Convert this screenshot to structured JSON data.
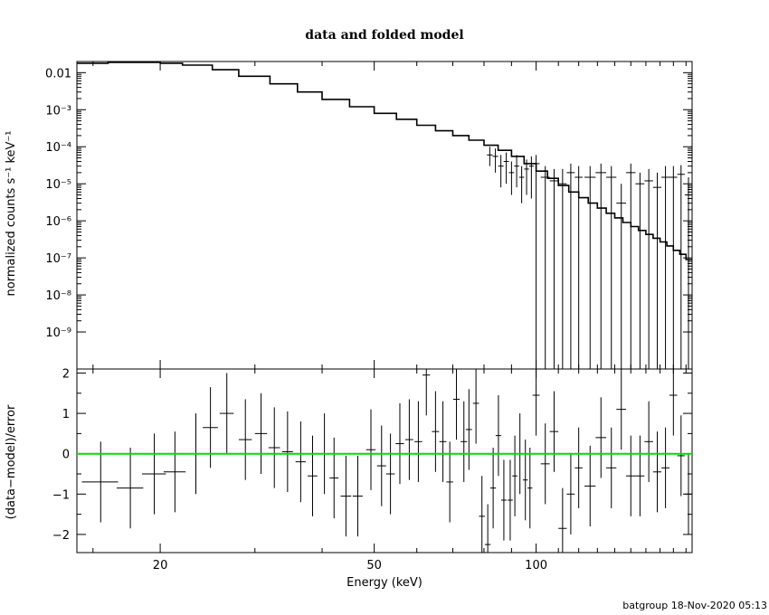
{
  "chart_data": [
    {
      "type": "scatter",
      "panel": "upper",
      "title": "data and folded model",
      "ylabel": "normalized counts s⁻¹ keV⁻¹",
      "yscale": "log",
      "xscale": "log",
      "xlim": [
        14,
        195
      ],
      "ylim": [
        1e-10,
        0.02
      ],
      "y_tick_labels": [
        "0.01",
        "10⁻³",
        "10⁻⁴",
        "10⁻⁵",
        "10⁻⁶",
        "10⁻⁷",
        "10⁻⁸",
        "10⁻⁹"
      ],
      "series": [
        {
          "style": "step",
          "color": "#000000",
          "x": [
            14,
            16,
            18,
            20,
            22,
            25,
            28,
            32,
            36,
            40,
            45,
            50,
            55,
            60,
            65,
            70,
            75,
            80,
            85,
            90,
            95,
            100,
            105,
            110,
            115,
            120,
            125,
            130,
            135,
            140,
            145,
            150,
            155,
            160,
            165,
            170,
            175,
            180,
            185,
            190,
            195
          ],
          "y": [
            0.018,
            0.019,
            0.019,
            0.018,
            0.016,
            0.012,
            0.008,
            0.005,
            0.003,
            0.0019,
            0.0012,
            0.0008,
            0.00055,
            0.00038,
            0.00027,
            0.0002,
            0.00015,
            0.00011,
            8e-05,
            5.5e-05,
            3.5e-05,
            2.2e-05,
            1.4e-05,
            9e-06,
            6e-06,
            4.2e-06,
            3e-06,
            2.2e-06,
            1.6e-06,
            1.2e-06,
            9e-07,
            7e-07,
            5.5e-07,
            4.3e-07,
            3.4e-07,
            2.7e-07,
            2.1e-07,
            1.6e-07,
            1.25e-07,
            9e-08,
            7e-08
          ]
        },
        {
          "style": "errorbars",
          "color": "#000000",
          "x": [
            82,
            84,
            86,
            88,
            90,
            92,
            94,
            96,
            98,
            100,
            104,
            108,
            112,
            116,
            120,
            126,
            132,
            138,
            144,
            150,
            156,
            162,
            168,
            174,
            180,
            186,
            192
          ],
          "y": [
            6e-05,
            5.5e-05,
            3e-05,
            4e-05,
            2e-05,
            3e-05,
            1.5e-05,
            2.5e-05,
            3e-05,
            3.5e-05,
            1.5e-05,
            1.2e-05,
            1e-05,
            2e-05,
            1.5e-05,
            1.5e-05,
            2e-05,
            1.5e-05,
            3e-06,
            2e-05,
            1e-05,
            1.2e-05,
            8e-06,
            1.5e-05,
            1.5e-05,
            1.8e-05,
            5e-06
          ],
          "ylow": [
            3e-05,
            2e-05,
            8e-06,
            1e-05,
            5e-06,
            8e-06,
            3e-06,
            5e-06,
            4e-06,
            1e-10,
            1e-10,
            1e-10,
            1e-10,
            1e-10,
            1e-10,
            1e-10,
            1e-10,
            1e-10,
            1e-10,
            1e-10,
            1e-10,
            1e-10,
            1e-10,
            1e-10,
            1e-10,
            1e-10,
            1e-10
          ],
          "yhigh": [
            0.0001,
            9e-05,
            6e-05,
            7e-05,
            4e-05,
            6e-05,
            3e-05,
            4.5e-05,
            5.5e-05,
            6e-05,
            3e-05,
            2.5e-05,
            2.5e-05,
            3.5e-05,
            3e-05,
            3e-05,
            3.5e-05,
            3e-05,
            1e-05,
            3.5e-05,
            2e-05,
            2.5e-05,
            2e-05,
            3e-05,
            3e-05,
            3.2e-05,
            1.5e-05
          ],
          "xerr": [
            1,
            1,
            1,
            1,
            1,
            1,
            1,
            1,
            1,
            1.5,
            2,
            2,
            2,
            2,
            2,
            3,
            3,
            3,
            3,
            3,
            3,
            3,
            3,
            3,
            3,
            3,
            3
          ]
        }
      ]
    },
    {
      "type": "scatter",
      "panel": "lower",
      "ylabel": "(data−model)/error",
      "xlabel": "Energy (keV)",
      "xscale": "log",
      "xlim": [
        14,
        195
      ],
      "ylim": [
        -2.45,
        2.1
      ],
      "x_tick_labels": [
        "20",
        "50",
        "100"
      ],
      "x_tick_values": [
        20,
        50,
        100
      ],
      "y_tick_labels": [
        "2",
        "1",
        "0",
        "−1",
        "−2"
      ],
      "y_tick_values": [
        2,
        1,
        0,
        -1,
        -2
      ],
      "reference_line": {
        "y": 0,
        "color": "#00dd00"
      },
      "series": [
        {
          "style": "errorbars",
          "color": "#000000",
          "x": [
            15.5,
            17.6,
            19.5,
            21.3,
            23.3,
            24.8,
            26.6,
            28.8,
            30.8,
            32.6,
            34.5,
            36.5,
            38.4,
            40.4,
            42.1,
            44.3,
            46.6,
            49.3,
            51.6,
            53.6,
            55.8,
            58.1,
            60.4,
            62.5,
            65.0,
            67.1,
            69.1,
            71.1,
            73.4,
            75.0,
            77.3,
            79.3,
            81.3,
            83.2,
            85.1,
            87.1,
            89.5,
            91.3,
            93.3,
            95.5,
            97.4,
            100.0,
            104.0,
            108.0,
            112.0,
            116.0,
            120.0,
            126.0,
            132.0,
            138.0,
            144.0,
            150.0,
            156.0,
            162.0,
            168.0,
            174.0,
            180.0,
            186.0,
            192.0
          ],
          "y": [
            -0.7,
            -0.85,
            -0.5,
            -0.45,
            0.0,
            0.65,
            1.0,
            0.35,
            0.5,
            0.15,
            0.05,
            -0.2,
            -0.55,
            0.0,
            -0.6,
            -1.05,
            -1.05,
            0.1,
            -0.3,
            -0.5,
            0.25,
            0.35,
            0.3,
            1.95,
            0.55,
            0.3,
            -0.7,
            1.35,
            0.3,
            0.6,
            1.25,
            -1.55,
            -2.25,
            -0.85,
            0.45,
            -1.15,
            -1.15,
            -0.55,
            0.0,
            -0.65,
            -0.85,
            1.45,
            -0.25,
            0.55,
            -1.85,
            -1.0,
            -0.35,
            -0.8,
            0.4,
            -0.35,
            1.1,
            -0.55,
            -0.55,
            0.3,
            -0.45,
            -0.35,
            1.45,
            -0.05,
            -1.0
          ],
          "yerr": [
            1.0,
            1.0,
            1.0,
            1.0,
            1.0,
            1.0,
            1.0,
            1.0,
            1.0,
            1.0,
            1.0,
            1.0,
            1.0,
            1.0,
            1.0,
            1.0,
            1.0,
            1.0,
            1.0,
            1.0,
            1.0,
            1.0,
            1.0,
            1.0,
            1.0,
            1.0,
            1.0,
            1.0,
            1.0,
            1.0,
            1.0,
            1.0,
            1.0,
            1.0,
            1.0,
            1.0,
            1.0,
            1.0,
            1.0,
            1.0,
            1.0,
            1.0,
            1.0,
            1.0,
            1.0,
            1.0,
            1.0,
            1.0,
            1.0,
            1.0,
            1.0,
            1.0,
            1.0,
            1.0,
            1.0,
            1.0,
            1.0,
            1.0,
            1.0
          ],
          "xerr": [
            1.2,
            1.0,
            1.0,
            1.0,
            0.8,
            0.8,
            0.8,
            0.8,
            0.8,
            0.8,
            0.8,
            0.8,
            0.8,
            0.8,
            0.8,
            1.0,
            1.0,
            1.0,
            1.0,
            1.0,
            1.0,
            1.0,
            1.0,
            1.0,
            1.0,
            1.0,
            1.0,
            1.0,
            1.0,
            1.0,
            1.0,
            1.0,
            1.0,
            1.0,
            1.0,
            1.0,
            1.0,
            1.0,
            1.0,
            1.0,
            1.0,
            1.5,
            2.0,
            2.0,
            2.0,
            2.0,
            2.0,
            3.0,
            3.0,
            3.0,
            3.0,
            3.0,
            3.0,
            3.0,
            3.0,
            3.0,
            3.0,
            3.0,
            3.0
          ]
        }
      ]
    }
  ],
  "footer": "batgroup 18-Nov-2020 05:13"
}
